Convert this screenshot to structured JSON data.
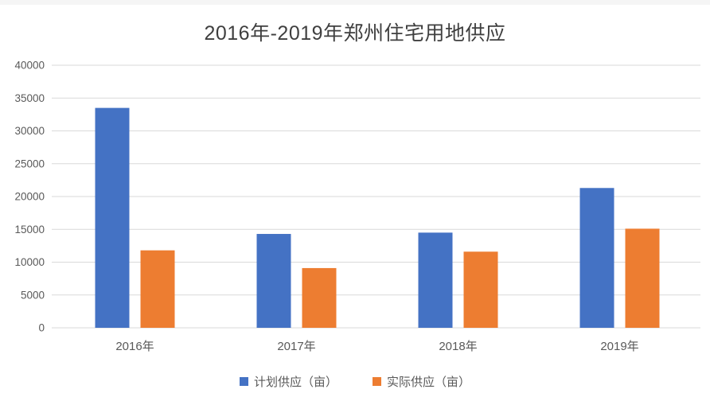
{
  "page": {
    "background": "#ffffff",
    "top_strip_color": "#f5f5f5"
  },
  "chart_data": {
    "type": "bar",
    "title": "2016年-2019年郑州住宅用地供应",
    "categories": [
      "2016年",
      "2017年",
      "2018年",
      "2019年"
    ],
    "series": [
      {
        "name": "计划供应（亩）",
        "color": "#4472C4",
        "values": [
          33500,
          14300,
          14500,
          21300
        ]
      },
      {
        "name": "实际供应（亩）",
        "color": "#ED7D31",
        "values": [
          11800,
          9100,
          11600,
          15100
        ]
      }
    ],
    "xlabel": "",
    "ylabel": "",
    "ylim": [
      0,
      40000
    ],
    "yticks": [
      0,
      5000,
      10000,
      15000,
      20000,
      25000,
      30000,
      35000,
      40000
    ],
    "grid": true,
    "gridline_color": "#d9d9d9",
    "axis_text_color": "#595959",
    "title_color": "#3f3f3f",
    "legend_position": "bottom"
  }
}
